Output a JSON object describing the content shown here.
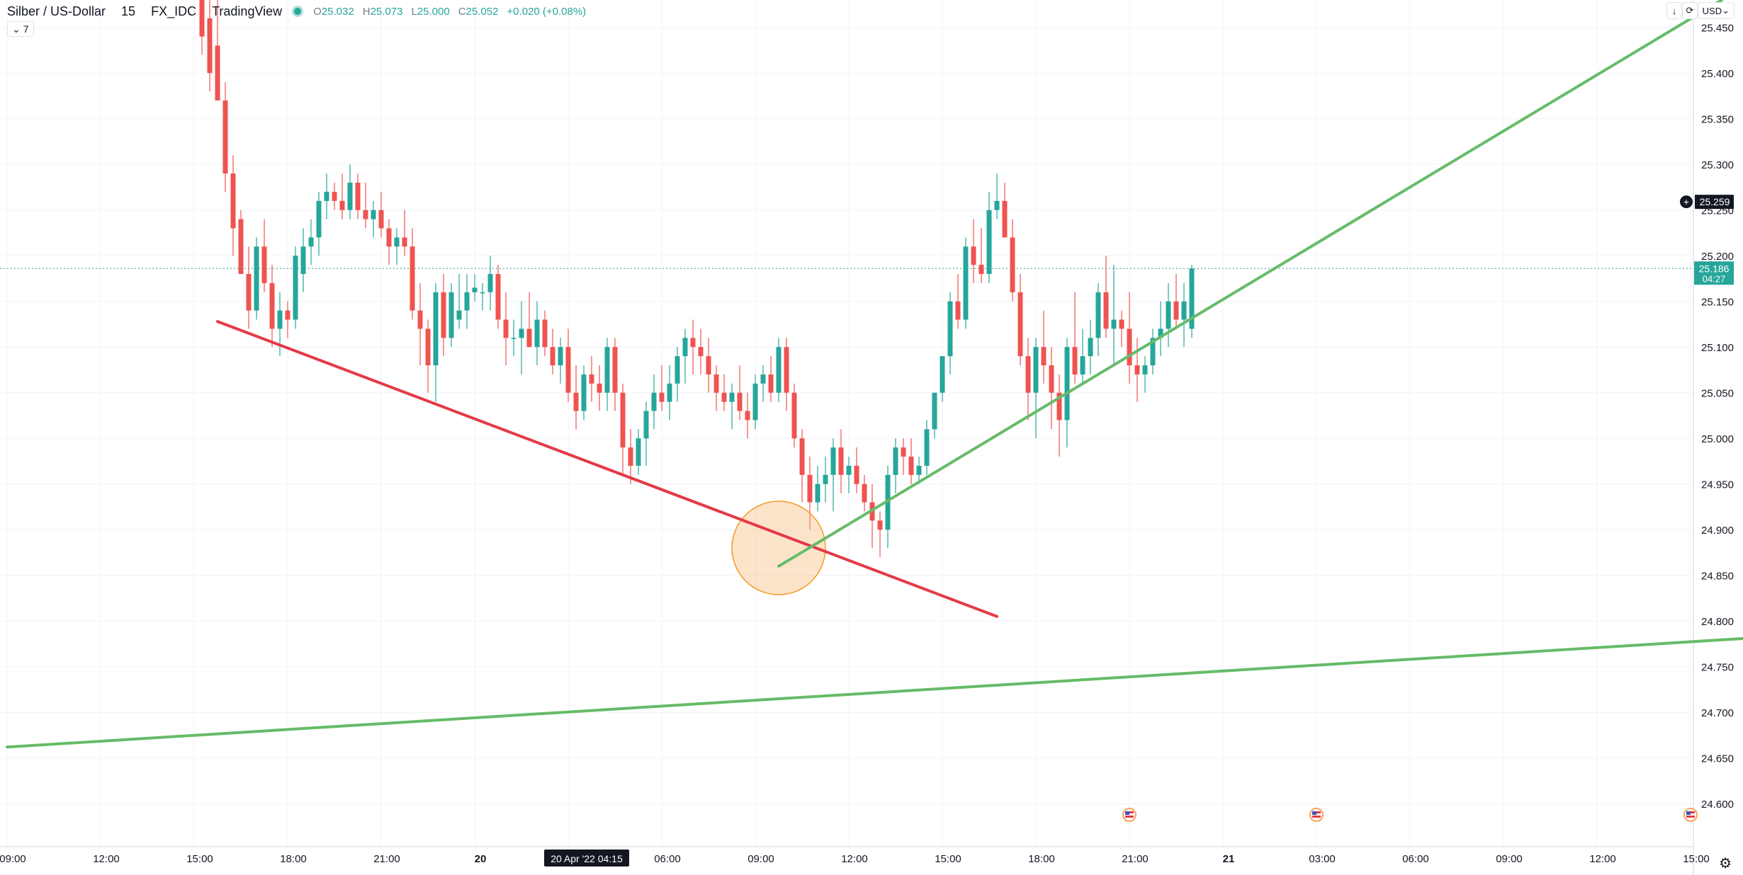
{
  "header": {
    "symbol": "Silber / US-Dollar",
    "interval": "15",
    "source": "FX_IDC",
    "brand": "TradingView",
    "ohlc": {
      "o_label": "O",
      "o": "25.032",
      "h_label": "H",
      "h": "25.073",
      "l_label": "L",
      "l": "25.000",
      "c_label": "C",
      "c": "25.052",
      "change": "+0.020 (+0.08%)"
    }
  },
  "indicators_toggle": {
    "icon": "chevron-down-icon",
    "count": "7"
  },
  "toolbar": {
    "currency": "USD",
    "currency_icon": "chevron-down-icon",
    "download_icon": "arrow-down-icon",
    "refresh_icon": "refresh-icon"
  },
  "settings_icon": "gear-icon",
  "colors": {
    "up": "#26a69a",
    "down": "#ef5350",
    "support_line": "#66bb6a",
    "resistance_line": "#e53946",
    "highlight": "#f6b26b",
    "crosshair_label_bg": "#131722"
  },
  "chart_data": {
    "type": "candlestick",
    "ylim": [
      24.575,
      25.48
    ],
    "y_ticks": [
      "25.450",
      "25.400",
      "25.350",
      "25.300",
      "25.250",
      "25.200",
      "25.150",
      "25.100",
      "25.050",
      "25.000",
      "24.950",
      "24.900",
      "24.850",
      "24.800",
      "24.750",
      "24.700",
      "24.650",
      "24.600"
    ],
    "x_ticks": [
      "09:00",
      "12:00",
      "15:00",
      "18:00",
      "21:00",
      "20",
      "03:00",
      "06:00",
      "09:00",
      "12:00",
      "15:00",
      "18:00",
      "21:00",
      "21",
      "03:00",
      "06:00",
      "09:00",
      "12:00",
      "15:00"
    ],
    "bold_x_ticks": [
      "20",
      "21"
    ],
    "x_start": "2022-04-19 09:00",
    "last_price": {
      "value": "25.186",
      "countdown": "04:27"
    },
    "cursor_price": "25.259",
    "cursor_time": "20 Apr '22   04:15",
    "candles": [
      [
        "2022-04-19 15:15",
        25.51,
        25.53,
        25.42,
        25.44
      ],
      [
        "2022-04-19 15:30",
        25.46,
        25.49,
        25.38,
        25.4
      ],
      [
        "2022-04-19 15:45",
        25.43,
        25.48,
        25.37,
        25.37
      ],
      [
        "2022-04-19 16:00",
        25.37,
        25.39,
        25.27,
        25.29
      ],
      [
        "2022-04-19 16:15",
        25.29,
        25.31,
        25.2,
        25.23
      ],
      [
        "2022-04-19 16:30",
        25.24,
        25.25,
        25.18,
        25.18
      ],
      [
        "2022-04-19 16:45",
        25.18,
        25.21,
        25.12,
        25.14
      ],
      [
        "2022-04-19 17:00",
        25.14,
        25.22,
        25.13,
        25.21
      ],
      [
        "2022-04-19 17:15",
        25.21,
        25.24,
        25.16,
        25.17
      ],
      [
        "2022-04-19 17:30",
        25.17,
        25.19,
        25.1,
        25.12
      ],
      [
        "2022-04-19 17:45",
        25.12,
        25.16,
        25.09,
        25.14
      ],
      [
        "2022-04-19 18:00",
        25.14,
        25.15,
        25.11,
        25.13
      ],
      [
        "2022-04-19 18:15",
        25.13,
        25.21,
        25.12,
        25.2
      ],
      [
        "2022-04-19 18:30",
        25.18,
        25.23,
        25.16,
        25.21
      ],
      [
        "2022-04-19 18:45",
        25.21,
        25.24,
        25.19,
        25.22
      ],
      [
        "2022-04-19 19:00",
        25.22,
        25.27,
        25.2,
        25.26
      ],
      [
        "2022-04-19 19:15",
        25.26,
        25.29,
        25.24,
        25.27
      ],
      [
        "2022-04-19 19:30",
        25.27,
        25.28,
        25.25,
        25.26
      ],
      [
        "2022-04-19 19:45",
        25.26,
        25.29,
        25.24,
        25.25
      ],
      [
        "2022-04-19 20:00",
        25.25,
        25.3,
        25.24,
        25.28
      ],
      [
        "2022-04-19 20:15",
        25.28,
        25.29,
        25.24,
        25.25
      ],
      [
        "2022-04-19 20:30",
        25.25,
        25.28,
        25.23,
        25.24
      ],
      [
        "2022-04-19 20:45",
        25.24,
        25.26,
        25.22,
        25.25
      ],
      [
        "2022-04-19 21:00",
        25.25,
        25.27,
        25.22,
        25.23
      ],
      [
        "2022-04-19 21:15",
        25.23,
        25.24,
        25.19,
        25.21
      ],
      [
        "2022-04-19 21:30",
        25.21,
        25.23,
        25.19,
        25.22
      ],
      [
        "2022-04-19 21:45",
        25.22,
        25.25,
        25.2,
        25.21
      ],
      [
        "2022-04-19 22:00",
        25.21,
        25.23,
        25.13,
        25.14
      ],
      [
        "2022-04-19 22:15",
        25.14,
        25.17,
        25.08,
        25.12
      ],
      [
        "2022-04-19 22:30",
        25.12,
        25.13,
        25.05,
        25.08
      ],
      [
        "2022-04-19 22:45",
        25.08,
        25.17,
        25.04,
        25.16
      ],
      [
        "2022-04-19 23:00",
        25.16,
        25.18,
        25.09,
        25.11
      ],
      [
        "2022-04-19 23:15",
        25.11,
        25.17,
        25.1,
        25.16
      ],
      [
        "2022-04-19 23:30",
        25.13,
        25.18,
        25.12,
        25.14
      ],
      [
        "2022-04-19 23:45",
        25.14,
        25.18,
        25.12,
        25.16
      ],
      [
        "2022-04-20 00:00",
        25.16,
        25.18,
        25.15,
        25.165
      ],
      [
        "2022-04-20 00:15",
        25.16,
        25.17,
        25.14,
        25.16
      ],
      [
        "2022-04-20 00:30",
        25.16,
        25.2,
        25.14,
        25.18
      ],
      [
        "2022-04-20 00:45",
        25.18,
        25.19,
        25.12,
        25.13
      ],
      [
        "2022-04-20 01:00",
        25.13,
        25.16,
        25.08,
        25.11
      ],
      [
        "2022-04-20 01:15",
        25.11,
        25.13,
        25.09,
        25.11
      ],
      [
        "2022-04-20 01:30",
        25.11,
        25.15,
        25.07,
        25.12
      ],
      [
        "2022-04-20 01:45",
        25.12,
        25.16,
        25.1,
        25.1
      ],
      [
        "2022-04-20 02:00",
        25.1,
        25.15,
        25.08,
        25.13
      ],
      [
        "2022-04-20 02:15",
        25.13,
        25.14,
        25.09,
        25.1
      ],
      [
        "2022-04-20 02:30",
        25.1,
        25.12,
        25.07,
        25.08
      ],
      [
        "2022-04-20 02:45",
        25.08,
        25.11,
        25.06,
        25.1
      ],
      [
        "2022-04-20 03:00",
        25.1,
        25.12,
        25.04,
        25.05
      ],
      [
        "2022-04-20 03:15",
        25.05,
        25.08,
        25.01,
        25.03
      ],
      [
        "2022-04-20 03:30",
        25.03,
        25.08,
        25.02,
        25.07
      ],
      [
        "2022-04-20 03:45",
        25.07,
        25.09,
        25.04,
        25.06
      ],
      [
        "2022-04-20 04:00",
        25.06,
        25.08,
        25.03,
        25.05
      ],
      [
        "2022-04-20 04:15",
        25.05,
        25.11,
        25.03,
        25.1
      ],
      [
        "2022-04-20 04:30",
        25.1,
        25.11,
        25.03,
        25.05
      ],
      [
        "2022-04-20 04:45",
        25.05,
        25.06,
        24.96,
        24.99
      ],
      [
        "2022-04-20 05:00",
        24.99,
        25.01,
        24.95,
        24.97
      ],
      [
        "2022-04-20 05:15",
        24.97,
        25.01,
        24.96,
        25.0
      ],
      [
        "2022-04-20 05:30",
        25.0,
        25.04,
        24.97,
        25.03
      ],
      [
        "2022-04-20 05:45",
        25.03,
        25.07,
        25.01,
        25.05
      ],
      [
        "2022-04-20 06:00",
        25.05,
        25.08,
        25.03,
        25.04
      ],
      [
        "2022-04-20 06:15",
        25.04,
        25.08,
        25.02,
        25.06
      ],
      [
        "2022-04-20 06:30",
        25.06,
        25.1,
        25.04,
        25.09
      ],
      [
        "2022-04-20 06:45",
        25.09,
        25.12,
        25.06,
        25.11
      ],
      [
        "2022-04-20 07:00",
        25.11,
        25.13,
        25.07,
        25.1
      ],
      [
        "2022-04-20 07:15",
        25.1,
        25.12,
        25.07,
        25.09
      ],
      [
        "2022-04-20 07:30",
        25.09,
        25.11,
        25.05,
        25.07
      ],
      [
        "2022-04-20 07:45",
        25.07,
        25.08,
        25.03,
        25.05
      ],
      [
        "2022-04-20 08:00",
        25.05,
        25.07,
        25.03,
        25.04
      ],
      [
        "2022-04-20 08:15",
        25.04,
        25.06,
        25.01,
        25.05
      ],
      [
        "2022-04-20 08:30",
        25.05,
        25.08,
        25.02,
        25.03
      ],
      [
        "2022-04-20 08:45",
        25.03,
        25.05,
        25.0,
        25.02
      ],
      [
        "2022-04-20 09:00",
        25.02,
        25.07,
        25.01,
        25.06
      ],
      [
        "2022-04-20 09:15",
        25.06,
        25.08,
        25.04,
        25.07
      ],
      [
        "2022-04-20 09:30",
        25.07,
        25.09,
        25.04,
        25.05
      ],
      [
        "2022-04-20 09:45",
        25.05,
        25.11,
        25.04,
        25.1
      ],
      [
        "2022-04-20 10:00",
        25.1,
        25.11,
        25.03,
        25.05
      ],
      [
        "2022-04-20 10:15",
        25.05,
        25.06,
        24.99,
        25.0
      ],
      [
        "2022-04-20 10:30",
        25.0,
        25.01,
        24.93,
        24.96
      ],
      [
        "2022-04-20 10:45",
        24.96,
        24.98,
        24.9,
        24.93
      ],
      [
        "2022-04-20 11:00",
        24.93,
        24.97,
        24.92,
        24.95
      ],
      [
        "2022-04-20 11:15",
        24.95,
        24.98,
        24.93,
        24.96
      ],
      [
        "2022-04-20 11:30",
        24.96,
        25.0,
        24.92,
        24.99
      ],
      [
        "2022-04-20 11:45",
        24.99,
        25.01,
        24.94,
        24.96
      ],
      [
        "2022-04-20 12:00",
        24.96,
        24.98,
        24.94,
        24.97
      ],
      [
        "2022-04-20 12:15",
        24.97,
        24.99,
        24.94,
        24.95
      ],
      [
        "2022-04-20 12:30",
        24.95,
        24.96,
        24.92,
        24.93
      ],
      [
        "2022-04-20 12:45",
        24.93,
        24.95,
        24.88,
        24.91
      ],
      [
        "2022-04-20 13:00",
        24.91,
        24.92,
        24.87,
        24.9
      ],
      [
        "2022-04-20 13:15",
        24.9,
        24.97,
        24.88,
        24.96
      ],
      [
        "2022-04-20 13:30",
        24.96,
        25.0,
        24.94,
        24.99
      ],
      [
        "2022-04-20 13:45",
        24.99,
        25.0,
        24.96,
        24.98
      ],
      [
        "2022-04-20 14:00",
        24.98,
        25.0,
        24.95,
        24.96
      ],
      [
        "2022-04-20 14:15",
        24.96,
        24.98,
        24.95,
        24.97
      ],
      [
        "2022-04-20 14:30",
        24.97,
        25.02,
        24.96,
        25.01
      ],
      [
        "2022-04-20 14:45",
        25.01,
        25.05,
        25.0,
        25.05
      ],
      [
        "2022-04-20 15:00",
        25.05,
        25.09,
        25.04,
        25.09
      ],
      [
        "2022-04-20 15:15",
        25.09,
        25.16,
        25.07,
        25.15
      ],
      [
        "2022-04-20 15:30",
        25.15,
        25.18,
        25.12,
        25.13
      ],
      [
        "2022-04-20 15:45",
        25.13,
        25.22,
        25.12,
        25.21
      ],
      [
        "2022-04-20 16:00",
        25.21,
        25.24,
        25.17,
        25.19
      ],
      [
        "2022-04-20 16:15",
        25.19,
        25.23,
        25.17,
        25.18
      ],
      [
        "2022-04-20 16:30",
        25.18,
        25.27,
        25.17,
        25.25
      ],
      [
        "2022-04-20 16:45",
        25.25,
        25.29,
        25.24,
        25.26
      ],
      [
        "2022-04-20 17:00",
        25.26,
        25.28,
        25.22,
        25.22
      ],
      [
        "2022-04-20 17:15",
        25.22,
        25.24,
        25.15,
        25.16
      ],
      [
        "2022-04-20 17:30",
        25.16,
        25.18,
        25.08,
        25.09
      ],
      [
        "2022-04-20 17:45",
        25.09,
        25.11,
        25.02,
        25.05
      ],
      [
        "2022-04-20 18:00",
        25.05,
        25.11,
        25.0,
        25.1
      ],
      [
        "2022-04-20 18:15",
        25.1,
        25.14,
        25.06,
        25.08
      ],
      [
        "2022-04-20 18:30",
        25.08,
        25.1,
        25.01,
        25.05
      ],
      [
        "2022-04-20 18:45",
        25.05,
        25.07,
        24.98,
        25.02
      ],
      [
        "2022-04-20 19:00",
        25.02,
        25.11,
        24.99,
        25.1
      ],
      [
        "2022-04-20 19:15",
        25.1,
        25.16,
        25.06,
        25.07
      ],
      [
        "2022-04-20 19:30",
        25.07,
        25.12,
        25.06,
        25.09
      ],
      [
        "2022-04-20 19:45",
        25.09,
        25.13,
        25.07,
        25.11
      ],
      [
        "2022-04-20 20:00",
        25.11,
        25.17,
        25.09,
        25.16
      ],
      [
        "2022-04-20 20:15",
        25.16,
        25.2,
        25.11,
        25.12
      ],
      [
        "2022-04-20 20:30",
        25.12,
        25.19,
        25.08,
        25.13
      ],
      [
        "2022-04-20 20:45",
        25.13,
        25.14,
        25.1,
        25.12
      ],
      [
        "2022-04-20 21:00",
        25.12,
        25.16,
        25.06,
        25.08
      ],
      [
        "2022-04-20 21:15",
        25.08,
        25.11,
        25.04,
        25.07
      ],
      [
        "2022-04-20 21:30",
        25.07,
        25.09,
        25.05,
        25.08
      ],
      [
        "2022-04-20 21:45",
        25.08,
        25.12,
        25.07,
        25.11
      ],
      [
        "2022-04-20 22:00",
        25.11,
        25.15,
        25.09,
        25.12
      ],
      [
        "2022-04-20 22:15",
        25.12,
        25.17,
        25.1,
        25.15
      ],
      [
        "2022-04-20 22:30",
        25.15,
        25.18,
        25.12,
        25.13
      ],
      [
        "2022-04-20 22:45",
        25.13,
        25.17,
        25.1,
        25.15
      ],
      [
        "2022-04-20 23:00",
        25.12,
        25.19,
        25.11,
        25.186
      ]
    ],
    "drawings": {
      "resistance_trendline": {
        "from": [
          "2022-04-19 15:45",
          25.128
        ],
        "to": [
          "2022-04-20 16:45",
          24.805
        ]
      },
      "support_trendline": {
        "from": [
          "2022-04-20 09:45",
          24.86
        ],
        "to": [
          "2022-04-21 16:00",
          25.48
        ]
      },
      "long_support_line": {
        "from": [
          "2022-04-19 09:00",
          24.662
        ],
        "to": [
          "2022-04-21 16:45",
          24.781
        ]
      },
      "highlight_circle": {
        "center": [
          "2022-04-20 09:45",
          24.88
        ]
      }
    },
    "event_markers": [
      "2022-04-20 21:00",
      "2022-04-21 03:00",
      "2022-04-21 15:00"
    ]
  }
}
